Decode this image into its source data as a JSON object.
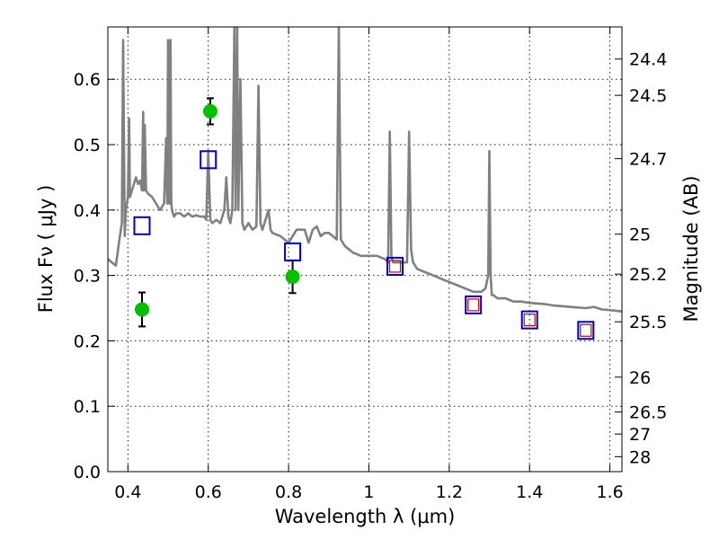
{
  "chart_data": {
    "type": "scatter",
    "title": "",
    "xlabel": "Wavelength  λ (μm)",
    "ylabel": "Flux  Fν  ( μJy )",
    "y2label": "Magnitude (AB)",
    "xlim": [
      0.35,
      1.63
    ],
    "ylim": [
      0.0,
      0.68
    ],
    "grid": true,
    "xticks": [
      0.4,
      0.6,
      0.8,
      1.0,
      1.2,
      1.4,
      1.6
    ],
    "xtick_labels": [
      "0.4",
      "0.6",
      "0.8",
      "1",
      "1.2",
      "1.4",
      "1.6"
    ],
    "yticks": [
      0.0,
      0.1,
      0.2,
      0.3,
      0.4,
      0.5,
      0.6
    ],
    "ytick_labels": [
      "0.0",
      "0.1",
      "0.2",
      "0.3",
      "0.4",
      "0.5",
      "0.6"
    ],
    "y2ticks": [
      {
        "label": "24.4",
        "flux": 0.6309
      },
      {
        "label": "24.5",
        "flux": 0.5754
      },
      {
        "label": "24.7",
        "flux": 0.4786
      },
      {
        "label": "25",
        "flux": 0.3631
      },
      {
        "label": "25.2",
        "flux": 0.302
      },
      {
        "label": "25.5",
        "flux": 0.2291
      },
      {
        "label": "26",
        "flux": 0.1445
      },
      {
        "label": "26.5",
        "flux": 0.0912
      },
      {
        "label": "27",
        "flux": 0.0575
      },
      {
        "label": "28",
        "flux": 0.0229
      }
    ],
    "colors": {
      "spectrum": "#808080",
      "observed": "#00c000",
      "model_broad": "#0000cc",
      "model_narrow": "#cc0000"
    },
    "series": [
      {
        "kind": "line",
        "x": [
          0.35,
          0.36,
          0.37,
          0.38,
          0.385,
          0.388,
          0.392,
          0.395,
          0.4,
          0.403,
          0.405,
          0.41,
          0.415,
          0.42,
          0.425,
          0.43,
          0.435,
          0.438,
          0.44,
          0.442,
          0.445,
          0.45,
          0.46,
          0.47,
          0.48,
          0.49,
          0.495,
          0.498,
          0.5,
          0.503,
          0.506,
          0.508,
          0.51,
          0.512,
          0.515,
          0.52,
          0.53,
          0.54,
          0.55,
          0.56,
          0.57,
          0.58,
          0.59,
          0.595,
          0.6,
          0.605,
          0.61,
          0.62,
          0.63,
          0.64,
          0.645,
          0.65,
          0.655,
          0.66,
          0.665,
          0.668,
          0.672,
          0.675,
          0.68,
          0.685,
          0.69,
          0.7,
          0.71,
          0.72,
          0.725,
          0.73,
          0.735,
          0.74,
          0.745,
          0.75,
          0.755,
          0.76,
          0.78,
          0.8,
          0.82,
          0.84,
          0.85,
          0.86,
          0.87,
          0.88,
          0.89,
          0.9,
          0.91,
          0.92,
          0.925,
          0.93,
          0.935,
          0.94,
          0.96,
          0.98,
          1.0,
          1.02,
          1.04,
          1.048,
          1.052,
          1.056,
          1.06,
          1.07,
          1.08,
          1.09,
          1.095,
          1.1,
          1.105,
          1.11,
          1.115,
          1.12,
          1.14,
          1.16,
          1.18,
          1.2,
          1.22,
          1.24,
          1.26,
          1.28,
          1.29,
          1.297,
          1.3,
          1.303,
          1.306,
          1.31,
          1.32,
          1.34,
          1.36,
          1.38,
          1.4,
          1.42,
          1.44,
          1.46,
          1.48,
          1.5,
          1.52,
          1.54,
          1.56,
          1.58,
          1.6,
          1.63
        ],
        "y": [
          0.325,
          0.32,
          0.315,
          0.36,
          0.38,
          0.66,
          0.36,
          0.4,
          0.42,
          0.54,
          0.42,
          0.43,
          0.44,
          0.45,
          0.44,
          0.445,
          0.43,
          0.55,
          0.43,
          0.53,
          0.43,
          0.425,
          0.42,
          0.41,
          0.4,
          0.41,
          0.51,
          0.41,
          0.66,
          0.41,
          0.66,
          0.41,
          0.4,
          0.395,
          0.39,
          0.395,
          0.395,
          0.39,
          0.395,
          0.39,
          0.392,
          0.39,
          0.39,
          0.385,
          0.49,
          0.385,
          0.38,
          0.385,
          0.38,
          0.4,
          0.45,
          0.39,
          0.38,
          0.4,
          0.68,
          0.4,
          0.68,
          0.4,
          0.6,
          0.38,
          0.37,
          0.38,
          0.37,
          0.375,
          0.59,
          0.38,
          0.37,
          0.38,
          0.39,
          0.4,
          0.37,
          0.365,
          0.36,
          0.35,
          0.37,
          0.37,
          0.35,
          0.37,
          0.375,
          0.36,
          0.365,
          0.365,
          0.36,
          0.355,
          0.68,
          0.355,
          0.35,
          0.345,
          0.335,
          0.33,
          0.33,
          0.33,
          0.325,
          0.32,
          0.52,
          0.33,
          0.32,
          0.32,
          0.32,
          0.32,
          0.32,
          0.52,
          0.34,
          0.32,
          0.315,
          0.31,
          0.305,
          0.3,
          0.295,
          0.29,
          0.285,
          0.28,
          0.275,
          0.275,
          0.28,
          0.3,
          0.49,
          0.3,
          0.27,
          0.27,
          0.265,
          0.265,
          0.26,
          0.26,
          0.258,
          0.257,
          0.256,
          0.254,
          0.253,
          0.252,
          0.251,
          0.25,
          0.252,
          0.248,
          0.247,
          0.245
        ]
      },
      {
        "kind": "points-errorbars",
        "x": [
          0.435,
          0.605,
          0.81
        ],
        "y": [
          0.248,
          0.551,
          0.298
        ],
        "yerr": [
          0.026,
          0.02,
          0.025
        ]
      },
      {
        "kind": "squares-broad",
        "x": [
          0.435,
          0.6,
          0.81,
          1.065,
          1.26,
          1.4,
          1.54
        ],
        "y": [
          0.376,
          0.477,
          0.336,
          0.314,
          0.255,
          0.232,
          0.216
        ]
      },
      {
        "kind": "squares-narrow",
        "x": [
          1.065,
          1.26,
          1.4,
          1.54
        ],
        "y": [
          0.314,
          0.255,
          0.232,
          0.216
        ]
      }
    ]
  }
}
